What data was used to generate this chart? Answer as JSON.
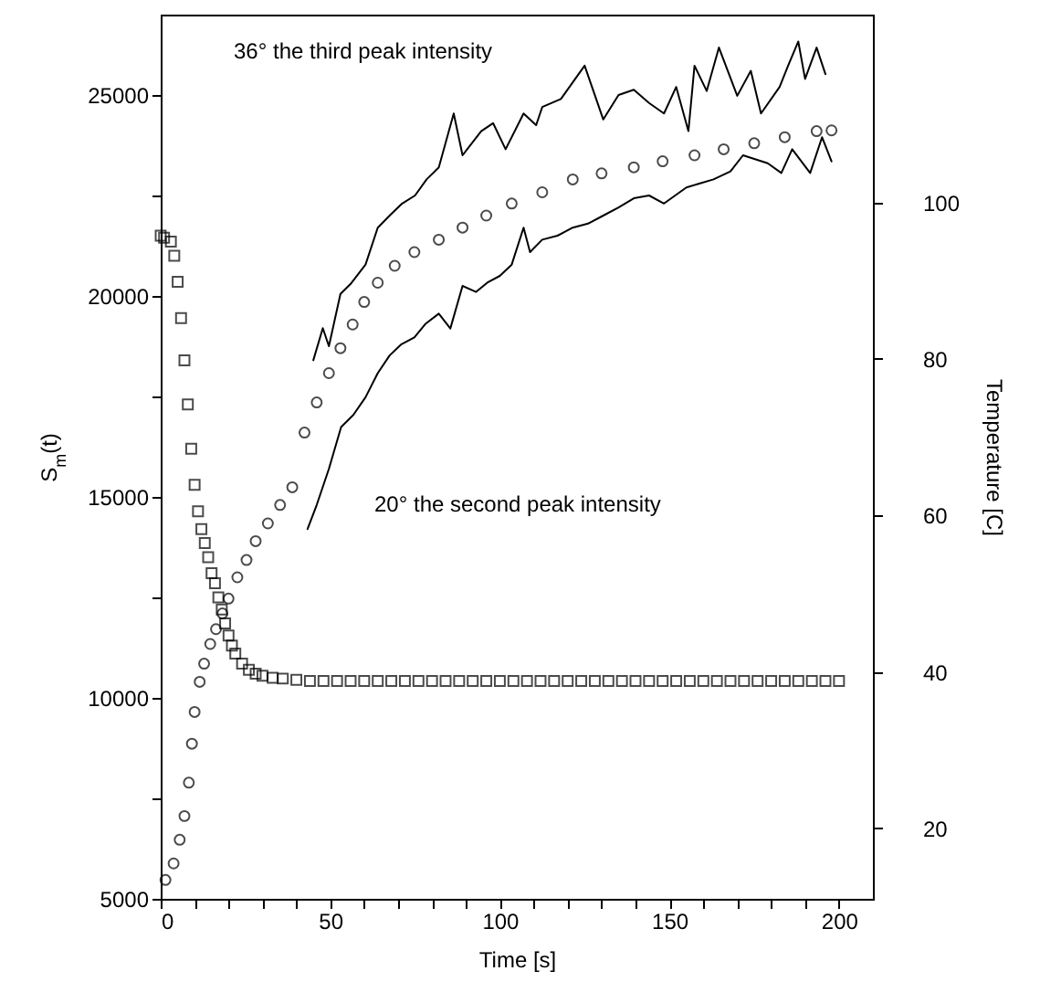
{
  "chart_data": {
    "type": "scatter",
    "xlabel": "Time [s]",
    "ylabel": "S$_{m}$(t)",
    "y2label": "Temperature [C]",
    "xlim": [
      0,
      210
    ],
    "xticks": [
      0,
      {
        "value": 10,
        "label": null
      },
      {
        "value": 20,
        "label": null
      },
      {
        "value": 30,
        "label": null
      },
      {
        "value": 40,
        "label": null
      },
      50,
      {
        "value": 60,
        "label": null
      },
      {
        "value": 70,
        "label": null
      },
      {
        "value": 80,
        "label": null
      },
      {
        "value": 90,
        "label": null
      },
      100,
      {
        "value": 110,
        "label": null
      },
      {
        "value": 120,
        "label": null
      },
      {
        "value": 130,
        "label": null
      },
      {
        "value": 140,
        "label": null
      },
      150,
      {
        "value": 160,
        "label": null
      },
      {
        "value": 170,
        "label": null
      },
      {
        "value": 180,
        "label": null
      },
      {
        "value": 190,
        "label": null
      },
      200
    ],
    "ylim": [
      5000,
      27000
    ],
    "yticks": [
      5000,
      {
        "value": 7500,
        "label": null
      },
      10000,
      {
        "value": 12500,
        "label": null
      },
      15000,
      {
        "value": 17500,
        "label": null
      },
      20000,
      {
        "value": 22500,
        "label": null
      },
      25000
    ],
    "y2lim": [
      11,
      124
    ],
    "y2ticks": [
      20,
      40,
      60,
      80,
      100
    ],
    "series": [
      {
        "marker": "square",
        "color": "#000000",
        "x": [
          0,
          1,
          3,
          4,
          5,
          6,
          7,
          8,
          9,
          10,
          11,
          12,
          13,
          14,
          15,
          16,
          17,
          18,
          19,
          20,
          21,
          22,
          24,
          26,
          28,
          30,
          33,
          36,
          40,
          44,
          48,
          52,
          56,
          60,
          64,
          68,
          72,
          76,
          80,
          84,
          88,
          92,
          96,
          100,
          104,
          108,
          112,
          116,
          120,
          124,
          128,
          132,
          136,
          140,
          144,
          148,
          152,
          156,
          160,
          164,
          168,
          172,
          176,
          180,
          184,
          188,
          192,
          196,
          200
        ],
        "values": [
          21500,
          21450,
          21350,
          21000,
          20350,
          19450,
          18400,
          17300,
          16200,
          15300,
          14640,
          14200,
          13850,
          13500,
          13100,
          12850,
          12500,
          12200,
          11850,
          11550,
          11300,
          11100,
          10850,
          10700,
          10600,
          10550,
          10500,
          10480,
          10450,
          10420,
          10420,
          10420,
          10420,
          10420,
          10420,
          10420,
          10420,
          10420,
          10420,
          10420,
          10420,
          10420,
          10420,
          10420,
          10420,
          10420,
          10420,
          10420,
          10420,
          10420,
          10420,
          10420,
          10420,
          10420,
          10420,
          10420,
          10420,
          10420,
          10420,
          10420,
          10420,
          10420,
          10420,
          10420,
          10420,
          10420,
          10420,
          10420,
          10420
        ]
      },
      {
        "marker": "circle",
        "color": "#000000",
        "x": [
          1.4,
          3.8,
          5.6,
          7,
          8.3,
          9.2,
          10,
          11.5,
          12.8,
          14.6,
          16.3,
          18.2,
          20,
          22.6,
          25.3,
          28,
          31.6,
          35.2,
          38.8,
          42.4,
          46,
          49.6,
          53,
          56.6,
          60,
          64,
          69,
          74.8,
          82,
          89,
          96,
          103.5,
          112.5,
          121.5,
          130,
          139.5,
          148,
          157.4,
          166,
          175,
          184,
          193.4,
          197.8
        ],
        "values": [
          5470,
          5880,
          6470,
          7060,
          7890,
          8860,
          9650,
          10400,
          10850,
          11340,
          11710,
          12100,
          12470,
          13000,
          13430,
          13900,
          14340,
          14800,
          15240,
          16600,
          17350,
          18080,
          18700,
          19290,
          19850,
          20330,
          20750,
          21090,
          21400,
          21700,
          22000,
          22300,
          22580,
          22900,
          23050,
          23200,
          23350,
          23500,
          23650,
          23800,
          23950,
          24100,
          24120
        ]
      },
      {
        "type": "line",
        "color": "#000000",
        "x": [
          45,
          47.8,
          49.6,
          53,
          56,
          60.4,
          64,
          67.5,
          71.2,
          75,
          78.4,
          82,
          86.4,
          89,
          94.5,
          98,
          101.7,
          107,
          110.7,
          112.5,
          118,
          125,
          130.5,
          135,
          139.5,
          144,
          148.4,
          152,
          155.6,
          157.4,
          161,
          164.6,
          170,
          174,
          177,
          182.5,
          185,
          188,
          190,
          193.4,
          196
        ],
        "values": [
          18400,
          19200,
          18750,
          20050,
          20300,
          20780,
          21700,
          22000,
          22300,
          22500,
          22900,
          23200,
          24540,
          23500,
          24100,
          24300,
          23650,
          24540,
          24250,
          24700,
          24900,
          25730,
          24390,
          25000,
          25130,
          24800,
          24540,
          25200,
          24100,
          25730,
          25100,
          26180,
          24980,
          25600,
          24540,
          25200,
          25730,
          26330,
          25400,
          26180,
          25520
        ]
      },
      {
        "type": "line",
        "color": "#000000",
        "x": [
          43.3,
          46,
          49.6,
          53.2,
          56.8,
          60.4,
          64,
          67.5,
          71,
          74.8,
          78,
          82,
          85.4,
          89,
          93,
          96.3,
          100,
          103.5,
          107,
          108.9,
          112.5,
          117,
          121.5,
          126,
          130.5,
          135,
          139.5,
          144,
          148.4,
          155,
          163,
          168,
          171.7,
          179,
          183,
          186.2,
          191.5,
          195,
          197.8
        ],
        "values": [
          14200,
          14800,
          15700,
          16740,
          17040,
          17480,
          18080,
          18520,
          18800,
          18970,
          19300,
          19560,
          19190,
          20250,
          20100,
          20330,
          20500,
          20780,
          21700,
          21090,
          21400,
          21500,
          21700,
          21800,
          22000,
          22200,
          22430,
          22500,
          22300,
          22700,
          22900,
          23100,
          23500,
          23300,
          23060,
          23650,
          23060,
          23950,
          23350
        ]
      }
    ],
    "annotations": [
      "36° the third peak intensity",
      "20° the second peak intensity"
    ]
  }
}
